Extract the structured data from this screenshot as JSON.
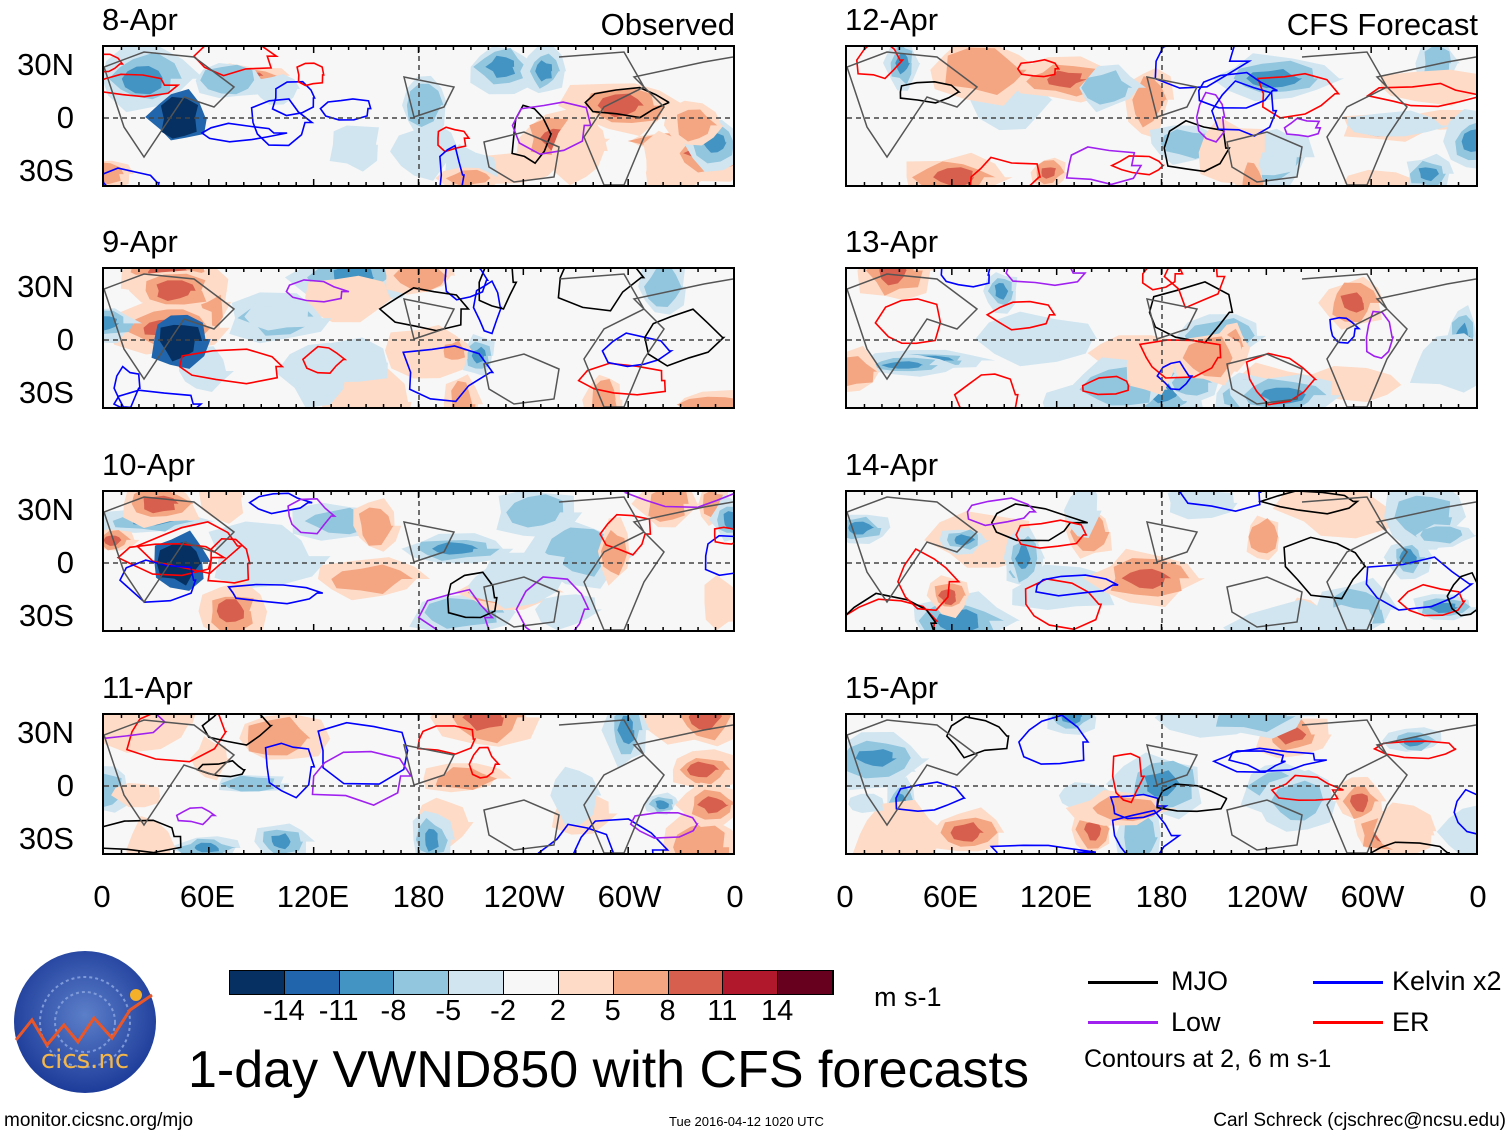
{
  "columns": [
    {
      "heading": "Observed",
      "panels": [
        "8-Apr",
        "9-Apr",
        "10-Apr",
        "11-Apr"
      ]
    },
    {
      "heading": "CFS Forecast",
      "panels": [
        "12-Apr",
        "13-Apr",
        "14-Apr",
        "15-Apr"
      ]
    }
  ],
  "y_ticks": [
    "30N",
    "0",
    "30S"
  ],
  "x_ticks": [
    "0",
    "60E",
    "120E",
    "180",
    "120W",
    "60W",
    "0"
  ],
  "colorbar": {
    "colors": [
      "#053061",
      "#2166ac",
      "#4393c3",
      "#92c5de",
      "#d1e5f0",
      "#f7f7f7",
      "#fddbc7",
      "#f4a582",
      "#d6604d",
      "#b2182b",
      "#67001f"
    ],
    "labels": [
      "-14",
      "-11",
      "-8",
      "-5",
      "-2",
      "2",
      "5",
      "8",
      "11",
      "14"
    ],
    "units": "m s-1"
  },
  "legend": {
    "items": [
      {
        "label": "MJO",
        "color": "#000000"
      },
      {
        "label": "Kelvin x2",
        "color": "#0000ff"
      },
      {
        "label": "Low",
        "color": "#a020f0"
      },
      {
        "label": "ER",
        "color": "#ff0000"
      }
    ],
    "note": "Contours at 2, 6 m s-1"
  },
  "title": "1-day VWND850 with CFS forecasts",
  "logo_text": "cics.nc",
  "logo_ring_text": "Cooperative Institute for Climate and Satellites",
  "footer": {
    "left": "monitor.cicsnc.org/mjo",
    "center": "Tue 2016-04-12 1020 UTC",
    "right": "Carl Schreck (cjschrec@ncsu.edu)"
  }
}
